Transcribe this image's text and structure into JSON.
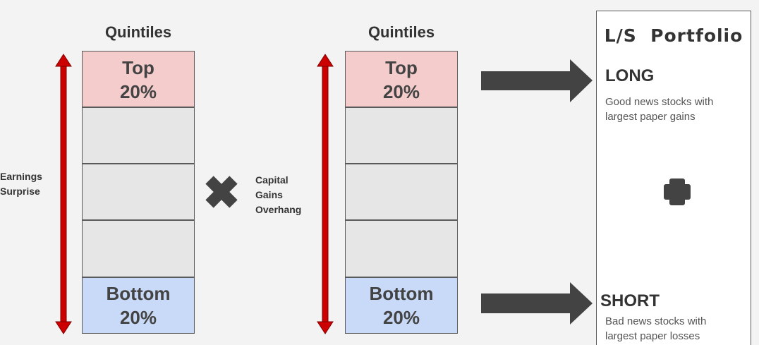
{
  "left_column": {
    "heading": "Quintiles",
    "top_label": [
      "Top",
      "20%"
    ],
    "bottom_label": [
      "Bottom",
      "20%"
    ],
    "axis_label": [
      "Earnings",
      "Surprise"
    ]
  },
  "operator_left": {
    "icon": "multiply-icon"
  },
  "right_column": {
    "heading": "Quintiles",
    "top_label": [
      "Top",
      "20%"
    ],
    "bottom_label": [
      "Bottom",
      "20%"
    ],
    "axis_label": [
      "Capital",
      "Gains",
      "Overhang"
    ]
  },
  "portfolio": {
    "title": "L/S  Portfolio",
    "long_heading": "LONG",
    "long_desc": [
      "Good news stocks with",
      "largest paper gains"
    ],
    "plus_icon": "plus-icon",
    "short_heading": "SHORT",
    "short_desc": [
      "Bad news stocks with",
      "largest paper losses"
    ]
  },
  "colors": {
    "background": "#f3f3f3",
    "top_quintile": "#f4cccc",
    "bottom_quintile": "#c9daf8",
    "middle_quintile": "#e6e6e6",
    "axis_arrow": "#cc0000",
    "flow_arrow": "#434343"
  }
}
